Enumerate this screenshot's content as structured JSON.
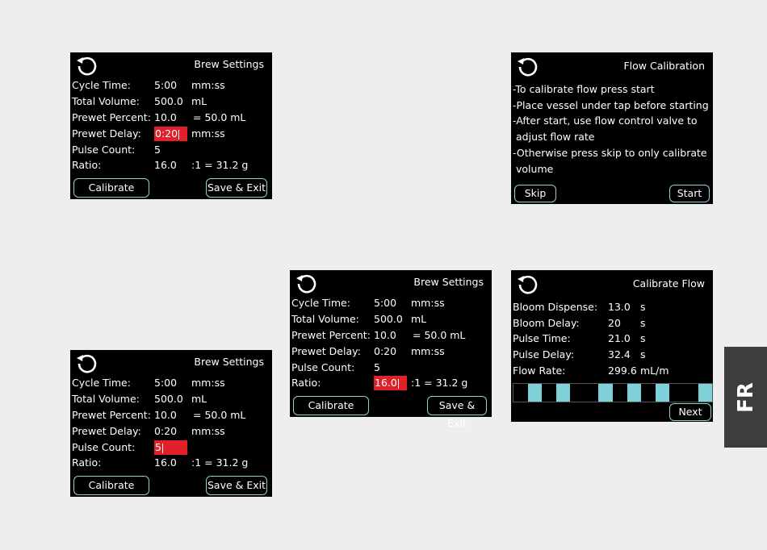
{
  "screen1": {
    "title": "Brew Settings",
    "rows": [
      {
        "label": "Cycle Time:",
        "value": "5:00",
        "unit": "mm:ss"
      },
      {
        "label": "Total Volume:",
        "value": "500.0",
        "unit": "mL"
      },
      {
        "label": "Prewet Percent:",
        "value": "10.0",
        "unit": "= 50.0 mL"
      },
      {
        "label": "Prewet Delay:",
        "value": "0:20",
        "unit": "mm:ss"
      },
      {
        "label": "Pulse Count:",
        "value": "5",
        "unit": ""
      },
      {
        "label": "Ratio:",
        "value": "16.0",
        "unit": ":1 = 31.2 g"
      }
    ],
    "calibrate": "Calibrate",
    "save": "Save & Exit"
  },
  "screen2": {
    "title": "Brew Settings",
    "rows": [
      {
        "label": "Cycle Time:",
        "value": "5:00",
        "unit": "mm:ss"
      },
      {
        "label": "Total Volume:",
        "value": "500.0",
        "unit": "mL"
      },
      {
        "label": "Prewet Percent:",
        "value": "10.0",
        "unit": "= 50.0 mL"
      },
      {
        "label": "Prewet Delay:",
        "value": "0:20",
        "unit": "mm:ss"
      },
      {
        "label": "Pulse Count:",
        "value": "5",
        "unit": ""
      },
      {
        "label": "Ratio:",
        "value": "16.0",
        "unit": ":1 = 31.2 g"
      }
    ],
    "calibrate": "Calibrate",
    "save": "Save & Exit"
  },
  "screen3": {
    "title": "Brew Settings",
    "rows": [
      {
        "label": "Cycle Time:",
        "value": "5:00",
        "unit": "mm:ss"
      },
      {
        "label": "Total Volume:",
        "value": "500.0",
        "unit": "mL"
      },
      {
        "label": "Prewet Percent:",
        "value": "10.0",
        "unit": "= 50.0 mL"
      },
      {
        "label": "Prewet Delay:",
        "value": "0:20",
        "unit": "mm:ss"
      },
      {
        "label": "Pulse Count:",
        "value": "5",
        "unit": ""
      },
      {
        "label": "Ratio:",
        "value": "16.0",
        "unit": ":1 = 31.2 g"
      }
    ],
    "calibrate": "Calibrate",
    "save": "Save & Exit"
  },
  "flow_calibration": {
    "title": "Flow Calibration",
    "lines": [
      "-To calibrate flow press start",
      "-Place vessel under tap before starting",
      "-After start, use flow control valve to",
      " adjust flow rate",
      "-Otherwise press skip to only calibrate",
      " volume"
    ],
    "skip": "Skip",
    "start": "Start"
  },
  "calibrate_flow": {
    "title": "Calibrate Flow",
    "rows": [
      {
        "label": "Bloom Dispense:",
        "value": "13.0",
        "unit": "s"
      },
      {
        "label": "Bloom Delay:",
        "value": "20",
        "unit": "s"
      },
      {
        "label": "Pulse Time:",
        "value": "21.0",
        "unit": "s"
      },
      {
        "label": "Pulse Delay:",
        "value": "32.4",
        "unit": "s"
      },
      {
        "label": "Flow Rate:",
        "value": "299.6",
        "unit": "mL/m"
      }
    ],
    "next": "Next",
    "bar_pattern": [
      0,
      1,
      0,
      1,
      0,
      0,
      1,
      0,
      1,
      0,
      1,
      0,
      0,
      1
    ]
  },
  "side_tab": "FR",
  "colors": {
    "highlight": "#e0202a",
    "accent": "#8fd0d8",
    "bar": "#7fd0d8"
  }
}
